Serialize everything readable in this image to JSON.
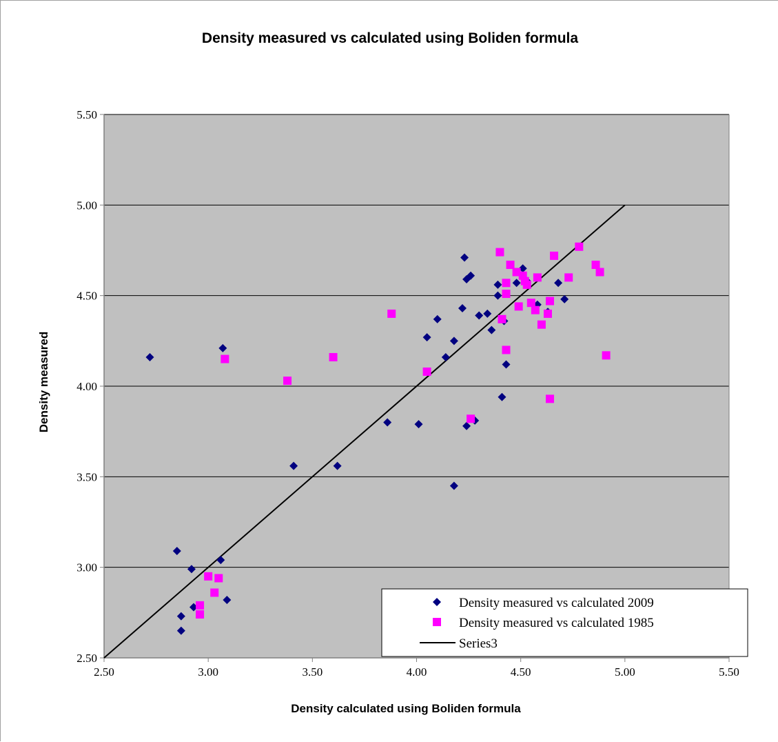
{
  "chart_data": {
    "type": "scatter",
    "title": "Density measured vs calculated using Boliden formula",
    "xlabel": "Density calculated using Boliden formula",
    "ylabel": "Density measured",
    "xlim": [
      2.5,
      5.5
    ],
    "ylim": [
      2.5,
      5.5
    ],
    "x_ticks": [
      "2.50",
      "3.00",
      "3.50",
      "4.00",
      "4.50",
      "5.00",
      "5.50"
    ],
    "y_ticks": [
      "2.50",
      "3.00",
      "3.50",
      "4.00",
      "4.50",
      "5.00",
      "5.50"
    ],
    "grid": "horizontal",
    "plot_background": "#c0c0c0",
    "legend_position": "bottom-right",
    "series": [
      {
        "name": "Density measured vs calculated 2009",
        "marker": "diamond",
        "color": "#000080",
        "points": [
          [
            2.72,
            4.16
          ],
          [
            3.07,
            4.21
          ],
          [
            2.85,
            3.09
          ],
          [
            2.92,
            2.99
          ],
          [
            3.06,
            3.04
          ],
          [
            2.93,
            2.78
          ],
          [
            3.09,
            2.82
          ],
          [
            2.87,
            2.73
          ],
          [
            2.87,
            2.65
          ],
          [
            3.41,
            3.56
          ],
          [
            3.62,
            3.56
          ],
          [
            3.86,
            3.8
          ],
          [
            4.01,
            3.79
          ],
          [
            4.05,
            4.27
          ],
          [
            4.1,
            4.37
          ],
          [
            4.14,
            4.16
          ],
          [
            4.18,
            4.25
          ],
          [
            4.18,
            3.45
          ],
          [
            4.22,
            4.43
          ],
          [
            4.23,
            4.71
          ],
          [
            4.24,
            4.59
          ],
          [
            4.26,
            4.61
          ],
          [
            4.24,
            3.78
          ],
          [
            4.28,
            3.81
          ],
          [
            4.3,
            4.39
          ],
          [
            4.34,
            4.4
          ],
          [
            4.36,
            4.31
          ],
          [
            4.39,
            4.56
          ],
          [
            4.39,
            4.5
          ],
          [
            4.41,
            3.94
          ],
          [
            4.42,
            4.36
          ],
          [
            4.43,
            4.12
          ],
          [
            4.48,
            4.57
          ],
          [
            4.51,
            4.65
          ],
          [
            4.53,
            4.58
          ],
          [
            4.58,
            4.45
          ],
          [
            4.63,
            4.41
          ],
          [
            4.68,
            4.57
          ],
          [
            4.71,
            4.48
          ]
        ]
      },
      {
        "name": "Density measured vs calculated 1985",
        "marker": "square",
        "color": "#ff00ff",
        "points": [
          [
            3.08,
            4.15
          ],
          [
            3.38,
            4.03
          ],
          [
            3.6,
            4.16
          ],
          [
            3.88,
            4.4
          ],
          [
            4.05,
            4.08
          ],
          [
            4.26,
            3.82
          ],
          [
            4.4,
            4.74
          ],
          [
            4.41,
            4.37
          ],
          [
            4.43,
            4.57
          ],
          [
            4.43,
            4.51
          ],
          [
            4.43,
            4.2
          ],
          [
            4.45,
            4.67
          ],
          [
            4.48,
            4.63
          ],
          [
            4.49,
            4.44
          ],
          [
            4.51,
            4.61
          ],
          [
            4.52,
            4.58
          ],
          [
            4.53,
            4.56
          ],
          [
            4.55,
            4.46
          ],
          [
            4.57,
            4.42
          ],
          [
            4.58,
            4.6
          ],
          [
            4.6,
            4.34
          ],
          [
            4.63,
            4.4
          ],
          [
            4.64,
            4.47
          ],
          [
            4.64,
            3.93
          ],
          [
            4.66,
            4.72
          ],
          [
            4.73,
            4.6
          ],
          [
            4.78,
            4.77
          ],
          [
            4.86,
            4.67
          ],
          [
            4.88,
            4.63
          ],
          [
            4.91,
            4.17
          ],
          [
            3.0,
            2.95
          ],
          [
            3.05,
            2.94
          ],
          [
            3.03,
            2.86
          ],
          [
            2.96,
            2.79
          ],
          [
            2.96,
            2.74
          ]
        ]
      },
      {
        "name": "Series3",
        "type": "line",
        "color": "#000000",
        "points": [
          [
            2.5,
            2.5
          ],
          [
            5.0,
            5.0
          ]
        ]
      }
    ]
  }
}
